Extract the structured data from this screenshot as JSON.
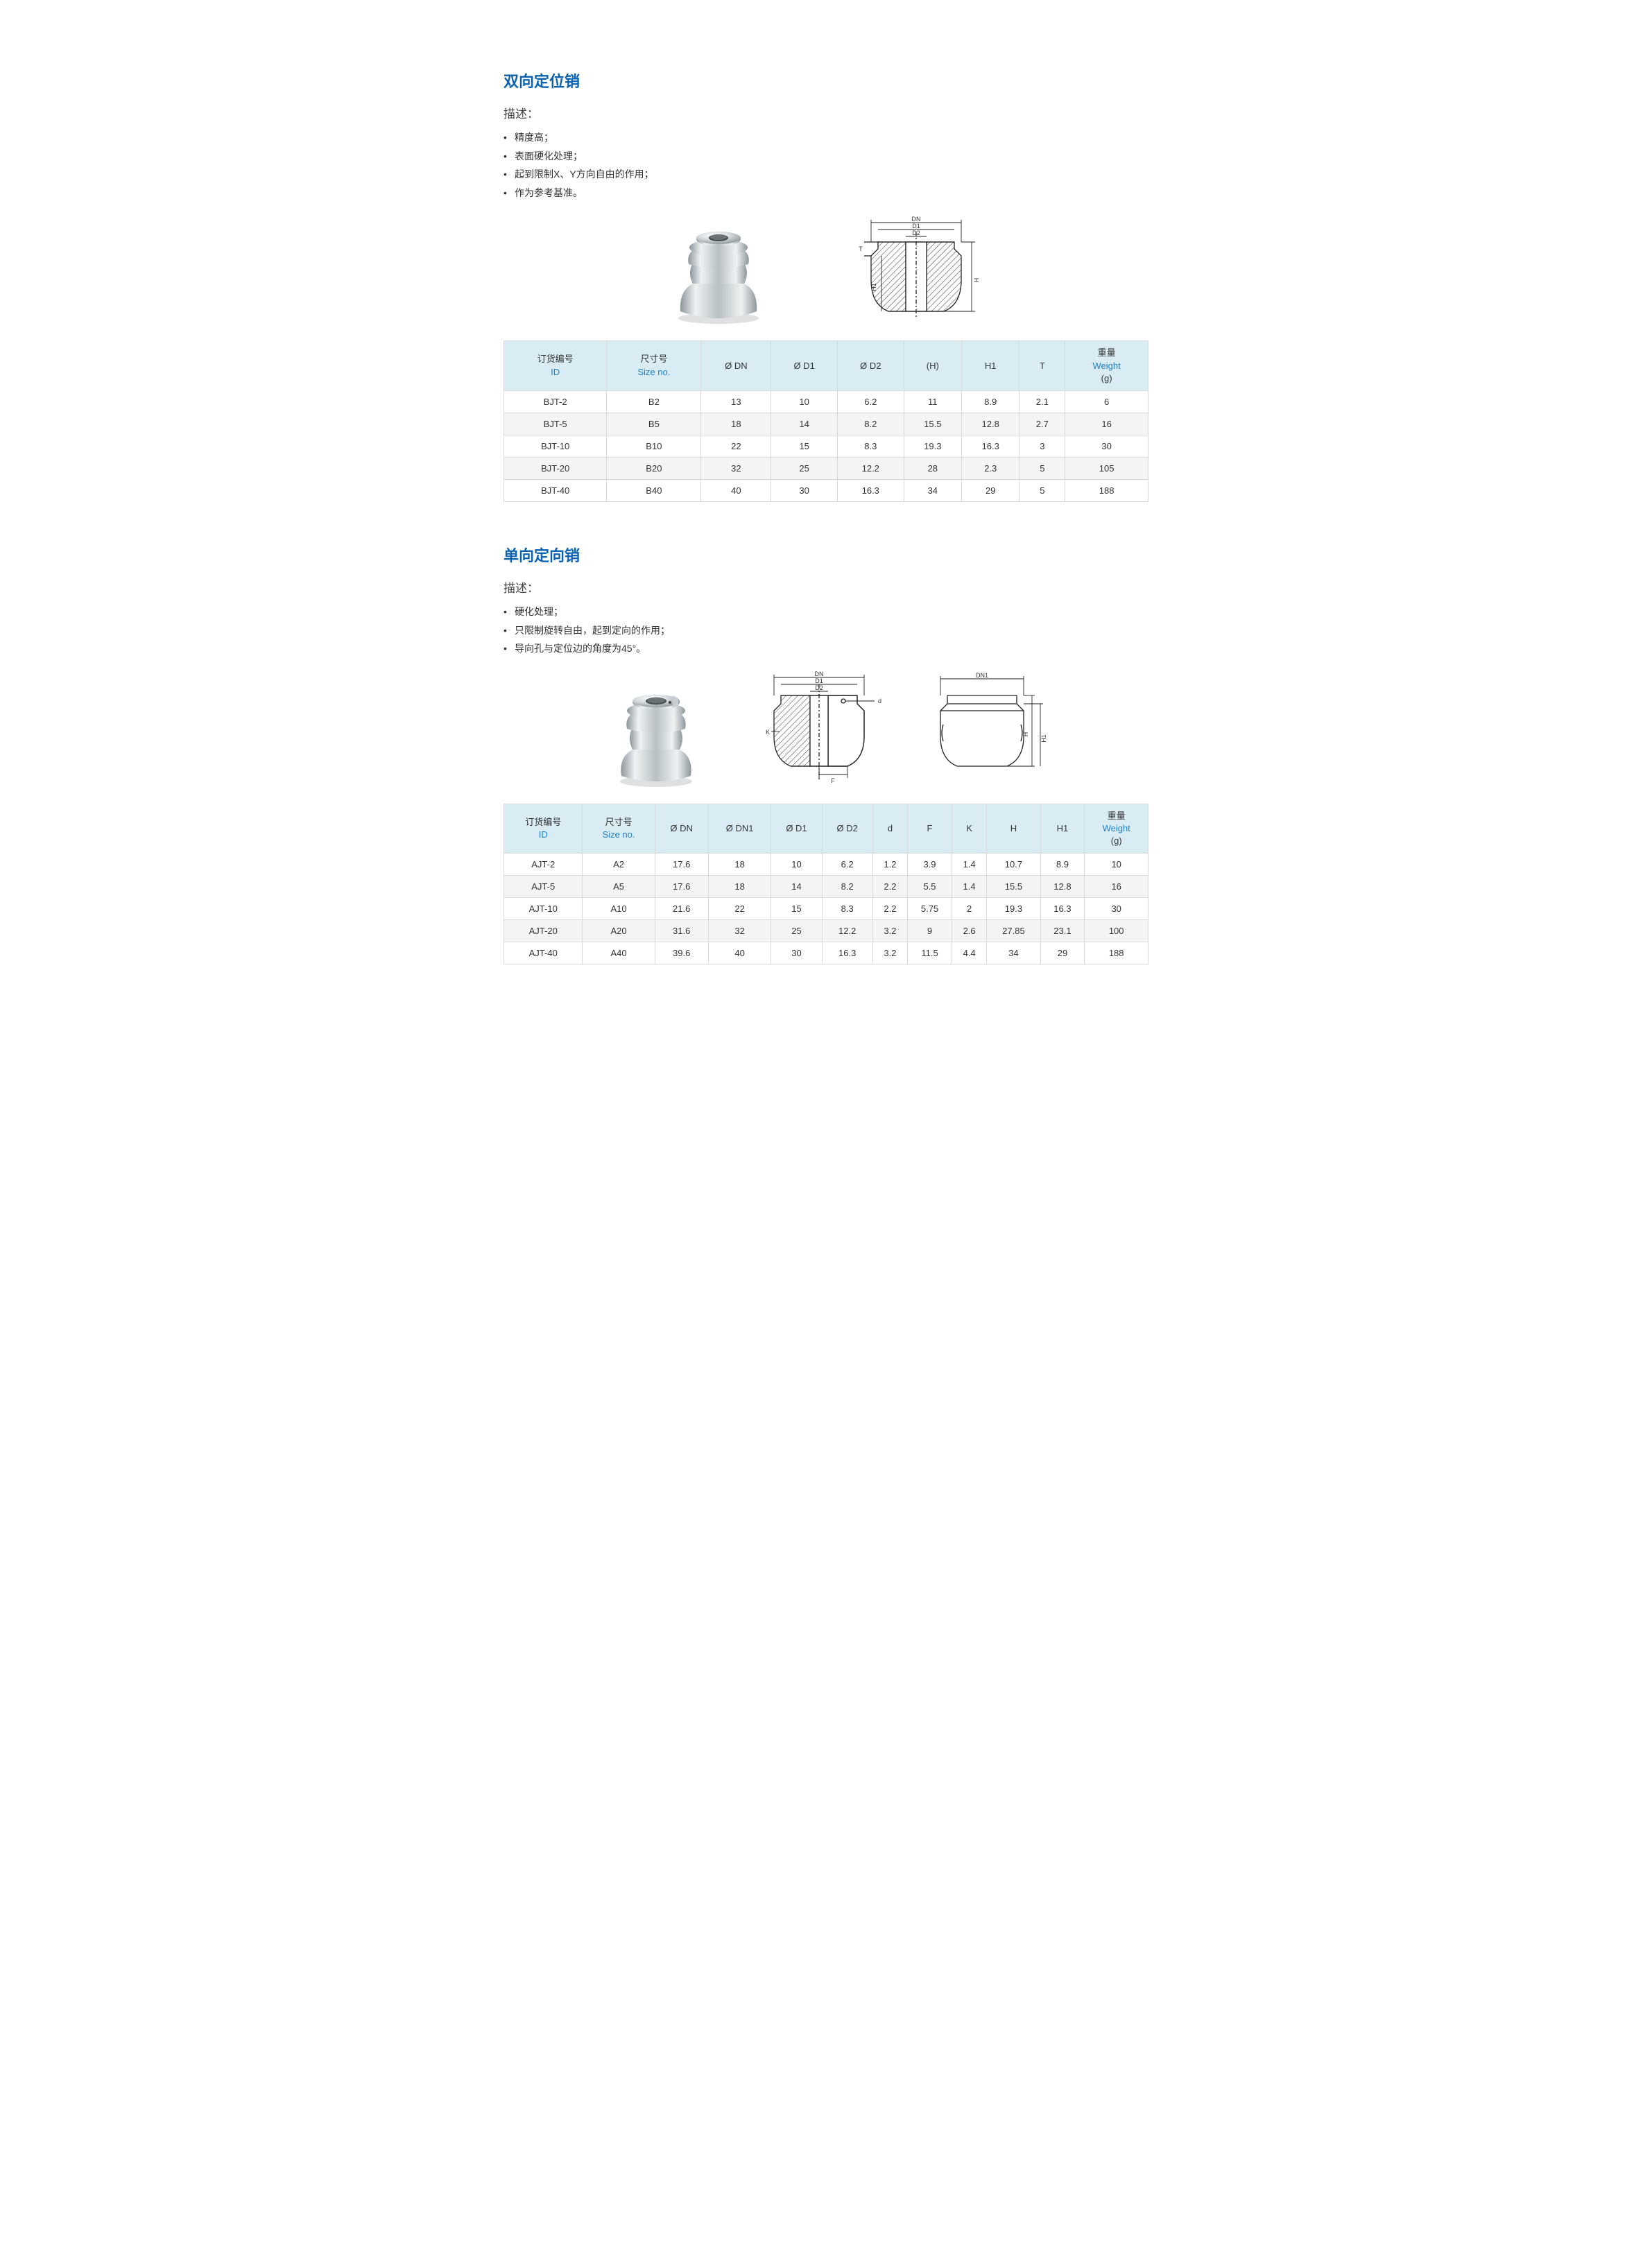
{
  "colors": {
    "title": "#0b63b0",
    "link": "#1f7fc2",
    "text": "#333333",
    "header_bg": "#d9ecf4",
    "row_odd": "#ffffff",
    "row_even": "#f4f4f4",
    "border": "#d9d9d9",
    "metal_light": "#f3f5f6",
    "metal_mid": "#cfd5d8",
    "metal_dark": "#9aa2a6",
    "diagram_stroke": "#222222",
    "hatch": "#555555"
  },
  "section1": {
    "title": "双向定位销",
    "desc_label": "描述：",
    "bullets": [
      "精度高；",
      "表面硬化处理；",
      "起到限制X、Y方向自由的作用；",
      "作为参考基准。"
    ],
    "diagram_labels": {
      "DN": "DN",
      "D1": "D1",
      "D2": "D2",
      "H": "H",
      "H1": "H1",
      "T": "T"
    },
    "headers": [
      {
        "cn": "订货编号",
        "en": "ID"
      },
      {
        "cn": "尺寸号",
        "en": "Size no."
      },
      {
        "cn": "",
        "en": "Ø DN"
      },
      {
        "cn": "",
        "en": "Ø D1"
      },
      {
        "cn": "",
        "en": "Ø D2"
      },
      {
        "cn": "",
        "en": "(H)"
      },
      {
        "cn": "",
        "en": "H1"
      },
      {
        "cn": "",
        "en": "T"
      },
      {
        "cn": "重量",
        "en": "Weight",
        "unit": "(g)"
      }
    ],
    "rows": [
      [
        "BJT-2",
        "B2",
        "13",
        "10",
        "6.2",
        "11",
        "8.9",
        "2.1",
        "6"
      ],
      [
        "BJT-5",
        "B5",
        "18",
        "14",
        "8.2",
        "15.5",
        "12.8",
        "2.7",
        "16"
      ],
      [
        "BJT-10",
        "B10",
        "22",
        "15",
        "8.3",
        "19.3",
        "16.3",
        "3",
        "30"
      ],
      [
        "BJT-20",
        "B20",
        "32",
        "25",
        "12.2",
        "28",
        "2.3",
        "5",
        "105"
      ],
      [
        "BJT-40",
        "B40",
        "40",
        "30",
        "16.3",
        "34",
        "29",
        "5",
        "188"
      ]
    ]
  },
  "section2": {
    "title": "单向定向销",
    "desc_label": "描述：",
    "bullets": [
      "硬化处理；",
      "只限制旋转自由，起到定向的作用；",
      "导向孔与定位边的角度为45°。"
    ],
    "diagram_labels": {
      "DN": "DN",
      "DN1": "DN1",
      "D1": "D1",
      "D2": "D2",
      "d": "d",
      "F": "F",
      "K": "K",
      "H": "H",
      "H1": "H1"
    },
    "headers": [
      {
        "cn": "订货编号",
        "en": "ID"
      },
      {
        "cn": "尺寸号",
        "en": "Size no."
      },
      {
        "cn": "",
        "en": "Ø DN"
      },
      {
        "cn": "",
        "en": "Ø DN1"
      },
      {
        "cn": "",
        "en": "Ø D1"
      },
      {
        "cn": "",
        "en": "Ø D2"
      },
      {
        "cn": "",
        "en": "d"
      },
      {
        "cn": "",
        "en": "F"
      },
      {
        "cn": "",
        "en": "K"
      },
      {
        "cn": "",
        "en": "H"
      },
      {
        "cn": "",
        "en": "H1"
      },
      {
        "cn": "重量",
        "en": "Weight",
        "unit": "(g)"
      }
    ],
    "rows": [
      [
        "AJT-2",
        "A2",
        "17.6",
        "18",
        "10",
        "6.2",
        "1.2",
        "3.9",
        "1.4",
        "10.7",
        "8.9",
        "10"
      ],
      [
        "AJT-5",
        "A5",
        "17.6",
        "18",
        "14",
        "8.2",
        "2.2",
        "5.5",
        "1.4",
        "15.5",
        "12.8",
        "16"
      ],
      [
        "AJT-10",
        "A10",
        "21.6",
        "22",
        "15",
        "8.3",
        "2.2",
        "5.75",
        "2",
        "19.3",
        "16.3",
        "30"
      ],
      [
        "AJT-20",
        "A20",
        "31.6",
        "32",
        "25",
        "12.2",
        "3.2",
        "9",
        "2.6",
        "27.85",
        "23.1",
        "100"
      ],
      [
        "AJT-40",
        "A40",
        "39.6",
        "40",
        "30",
        "16.3",
        "3.2",
        "11.5",
        "4.4",
        "34",
        "29",
        "188"
      ]
    ]
  }
}
